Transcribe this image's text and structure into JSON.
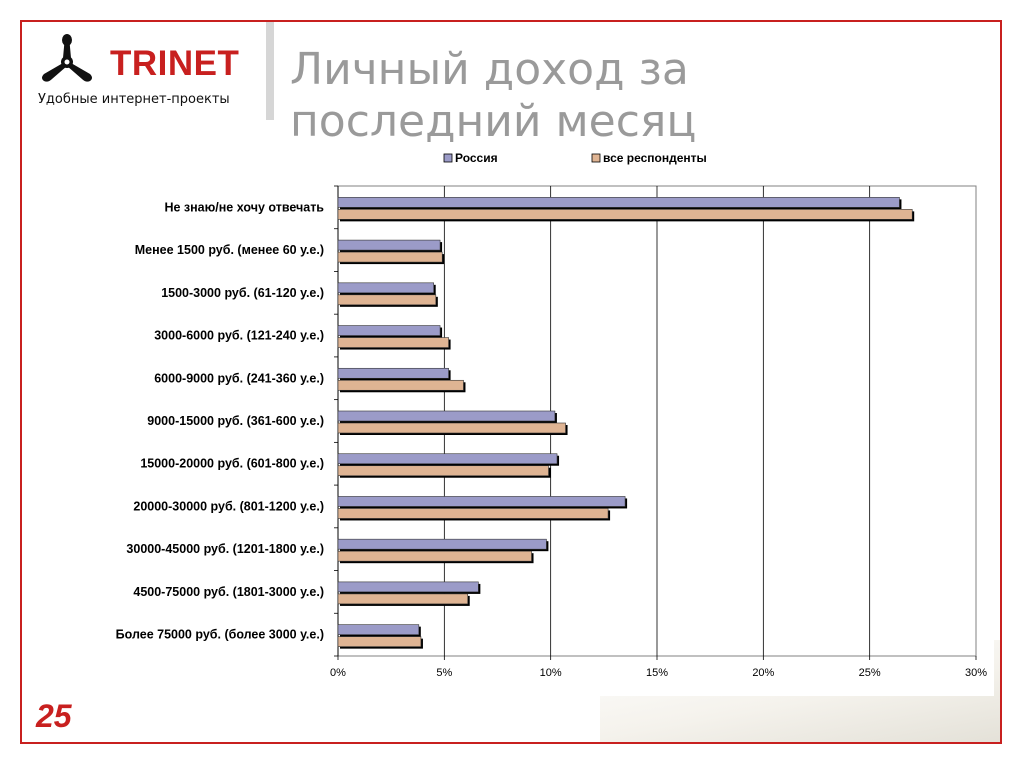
{
  "brand": {
    "name": "TRINET",
    "tagline": "Удобные интернет-проекты",
    "logo_icon": "three-blade-propeller-icon",
    "accent_color": "#c8201f"
  },
  "slide": {
    "title": "Личный доход за последний месяц",
    "page_number": "25"
  },
  "chart_data": {
    "type": "bar",
    "orientation": "horizontal",
    "categories": [
      "Не знаю/не хочу отвечать",
      "Менее 1500 руб. (менее 60 у.е.)",
      "1500-3000 руб. (61-120 у.е.)",
      "3000-6000 руб. (121-240 у.е.)",
      "6000-9000 руб. (241-360 у.е.)",
      "9000-15000 руб. (361-600 у.е.)",
      "15000-20000 руб. (601-800 у.е.)",
      "20000-30000 руб. (801-1200 у.е.)",
      "30000-45000 руб. (1201-1800 у.е.)",
      "4500-75000 руб. (1801-3000 у.е.)",
      "Более 75000 руб. (более 3000 у.е.)"
    ],
    "series": [
      {
        "name": "Россия",
        "color": "#9b9bc8",
        "values": [
          26.4,
          4.8,
          4.5,
          4.8,
          5.2,
          10.2,
          10.3,
          13.5,
          9.8,
          6.6,
          3.8
        ]
      },
      {
        "name": "все респонденты",
        "color": "#dfb493",
        "values": [
          27.0,
          4.9,
          4.6,
          5.2,
          5.9,
          10.7,
          9.9,
          12.7,
          9.1,
          6.1,
          3.9
        ]
      }
    ],
    "x_ticks": [
      "0%",
      "5%",
      "10%",
      "15%",
      "20%",
      "25%",
      "30%"
    ],
    "xlim": [
      0,
      30
    ],
    "grid": true,
    "legend_position": "top"
  }
}
